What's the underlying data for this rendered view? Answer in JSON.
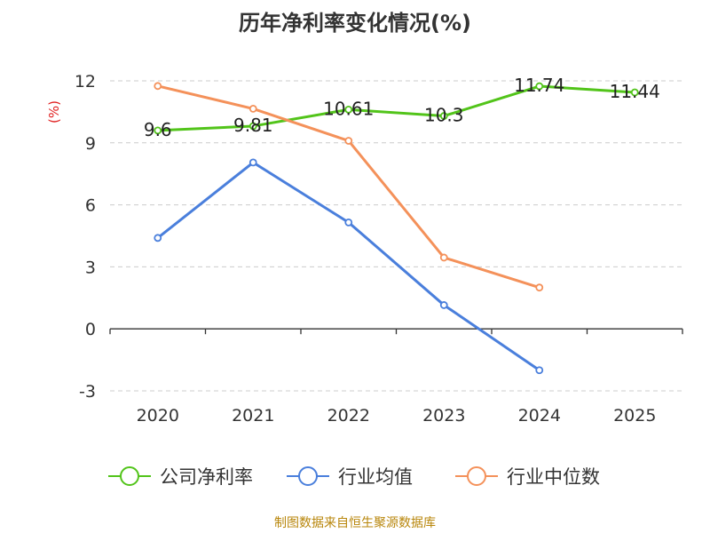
{
  "chart_data": {
    "type": "line",
    "title": "历年净利率变化情况(%)",
    "ylabel": "(%)",
    "xlabel": "",
    "categories": [
      "2020",
      "2021",
      "2022",
      "2023",
      "2024",
      "2025"
    ],
    "ylim": [
      -3,
      12
    ],
    "yticks": [
      -3,
      0,
      3,
      6,
      9,
      12
    ],
    "grid": true,
    "legend_position": "bottom",
    "series": [
      {
        "name": "公司净利率",
        "color": "#52c41a",
        "values": [
          9.6,
          9.81,
          10.61,
          10.3,
          11.74,
          11.44
        ],
        "labels": [
          "9.6",
          "9.81",
          "10.61",
          "10.3",
          "11.74",
          "11.44"
        ]
      },
      {
        "name": "行业均值",
        "color": "#4a7fdc",
        "values": [
          4.4,
          8.05,
          5.15,
          1.15,
          -2.0,
          null
        ]
      },
      {
        "name": "行业中位数",
        "color": "#f4915a",
        "values": [
          11.75,
          10.65,
          9.1,
          3.45,
          2.0,
          null
        ]
      }
    ]
  },
  "footer": {
    "source": "制图数据来自恒生聚源数据库"
  }
}
